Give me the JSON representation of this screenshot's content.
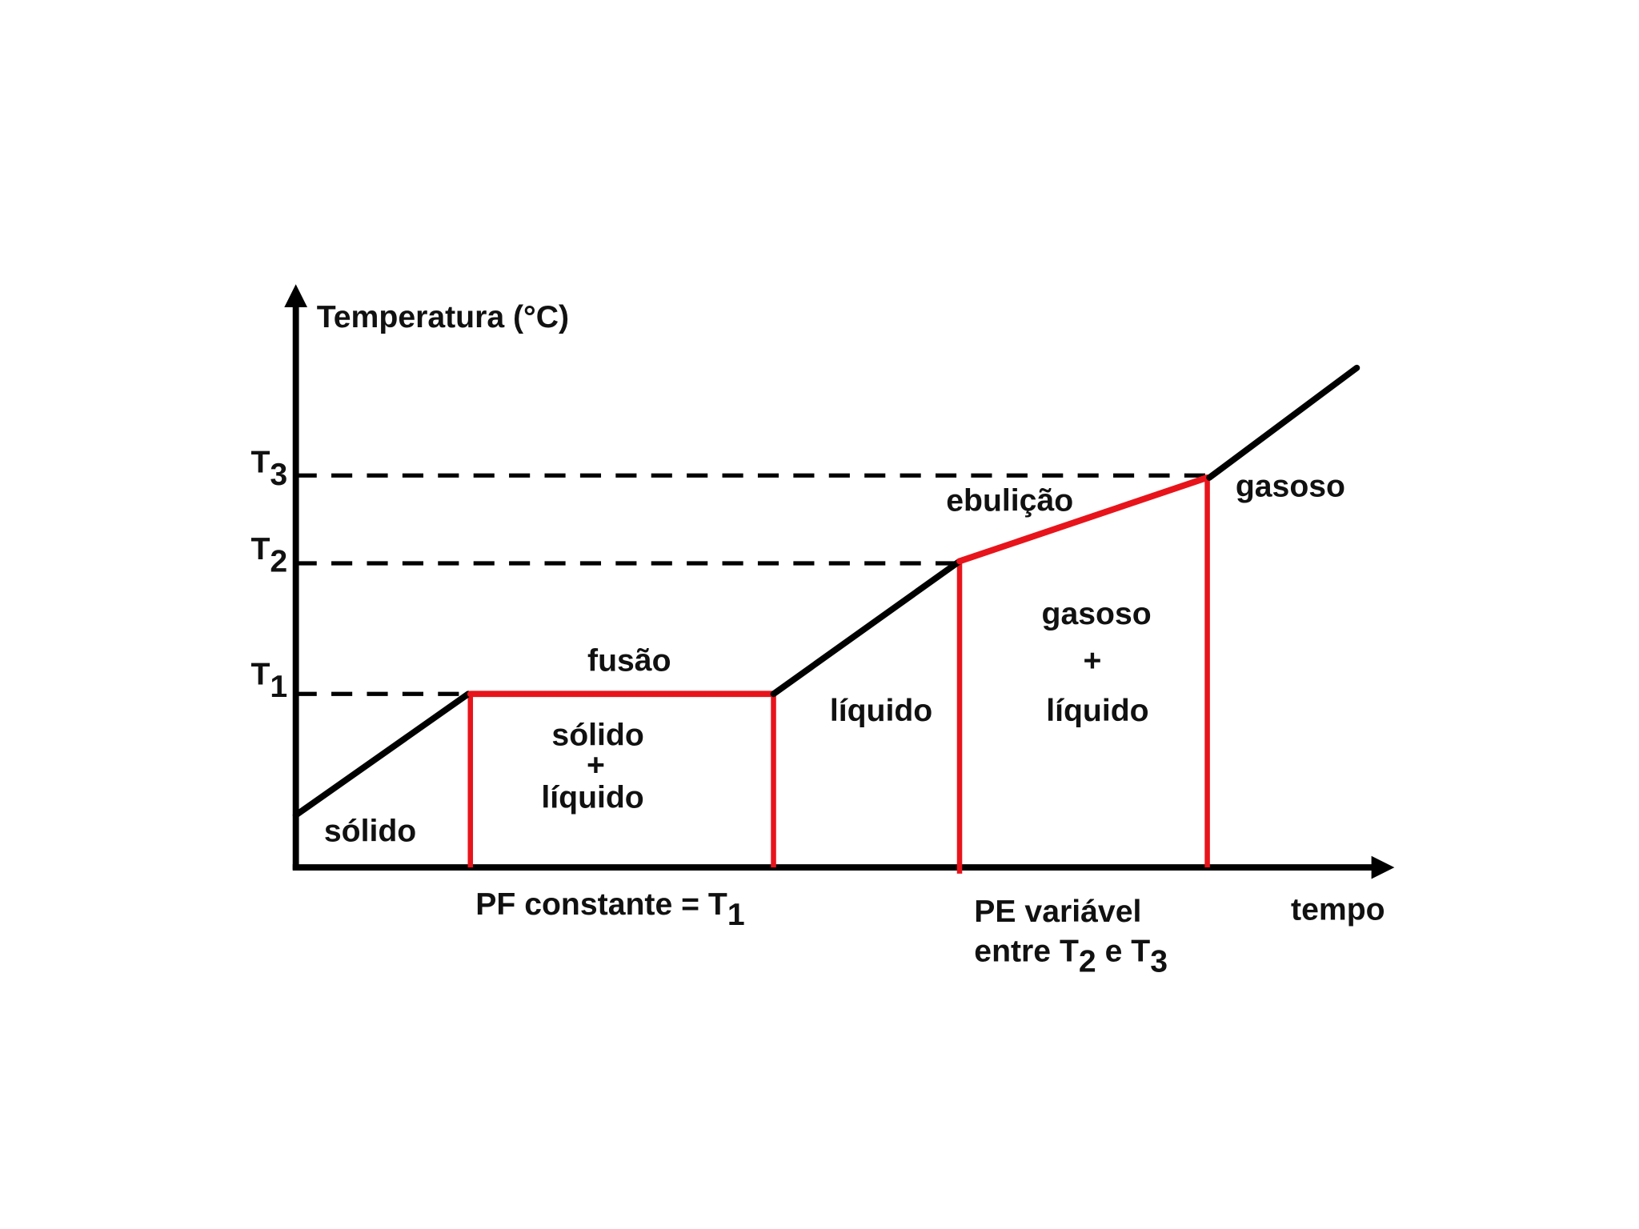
{
  "axes": {
    "y_label": "Temperatura (°C)",
    "x_label": "tempo"
  },
  "levels": [
    {
      "base": "T",
      "sub": "3"
    },
    {
      "base": "T",
      "sub": "2"
    },
    {
      "base": "T",
      "sub": "1"
    }
  ],
  "regions": {
    "solid": "sólido",
    "melting": {
      "title": "fusão",
      "lines": [
        "sólido",
        "+",
        "líquido"
      ]
    },
    "liquid": "líquido",
    "boiling": {
      "title": "ebulição",
      "lines": [
        "gasoso",
        "+",
        "líquido"
      ]
    },
    "gas": "gasoso"
  },
  "notes": {
    "melting_point": {
      "text": "PF constante = T",
      "sub": "1"
    },
    "boiling_point": {
      "line1": "PE variável",
      "pre": "entre T",
      "sub1": "2",
      "mid": " e T",
      "sub2": "3"
    }
  }
}
